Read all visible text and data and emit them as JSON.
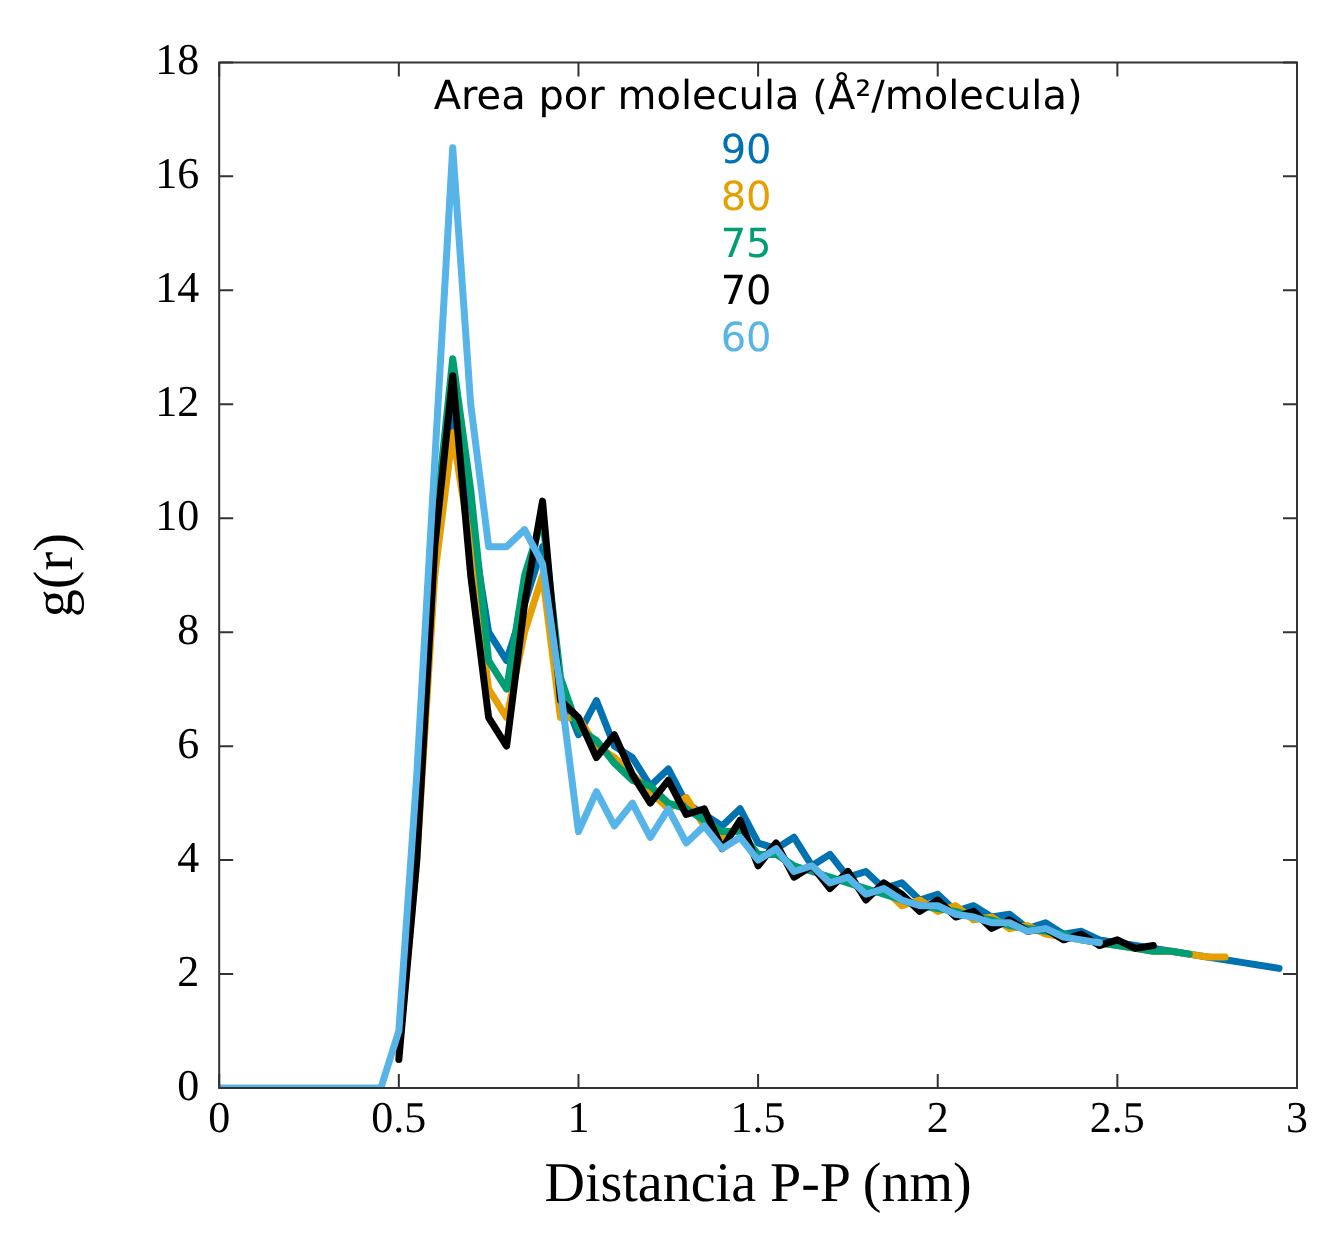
{
  "chart_data": {
    "type": "line",
    "xlabel": "Distancia P-P (nm)",
    "ylabel": "g(r)",
    "legend_title": "Area por molecula (Å²/molecula)",
    "legend": "top",
    "marker": "none",
    "line_style": "solid",
    "grid": false,
    "xlim": [
      0,
      3
    ],
    "xticks": [
      0,
      0.5,
      1,
      1.5,
      2,
      2.5,
      3
    ],
    "ylim": [
      0,
      18
    ],
    "yticks": [
      0,
      2,
      4,
      6,
      8,
      10,
      12,
      14,
      16,
      18
    ],
    "x": [
      0,
      0.45,
      0.5,
      0.55,
      0.6,
      0.65,
      0.7,
      0.75,
      0.8,
      0.85,
      0.9,
      0.95,
      1,
      1.05,
      1.1,
      1.15,
      1.2,
      1.25,
      1.3,
      1.35,
      1.4,
      1.45,
      1.5,
      1.55,
      1.6,
      1.65,
      1.7,
      1.75,
      1.8,
      1.85,
      1.9,
      1.95,
      2,
      2.05,
      2.1,
      2.15,
      2.2,
      2.25,
      2.3,
      2.35,
      2.4,
      2.45,
      2.5,
      2.55,
      2.6,
      2.65,
      2.7,
      2.75,
      2.8,
      2.85,
      2.9,
      2.95
    ],
    "series": [
      {
        "name": "90",
        "color": "#0072b2",
        "values": [
          null,
          null,
          0.8,
          4.5,
          9.5,
          12,
          10,
          8,
          7.5,
          8.5,
          9.5,
          7,
          6.2,
          6.8,
          6,
          5.8,
          5.3,
          5.6,
          5,
          4.8,
          4.6,
          4.9,
          4.3,
          4.2,
          4.4,
          3.9,
          4.1,
          3.7,
          3.8,
          3.5,
          3.6,
          3.3,
          3.4,
          3.1,
          3.2,
          3.0,
          3.05,
          2.8,
          2.9,
          2.7,
          2.75,
          2.6,
          2.55,
          2.5,
          2.45,
          2.4,
          2.35,
          2.3,
          2.25,
          2.2,
          2.15,
          2.1
        ]
      },
      {
        "name": "80",
        "color": "#e69f00",
        "values": [
          null,
          null,
          0.6,
          4,
          9,
          11.5,
          9.5,
          7,
          6.5,
          8,
          9,
          6.5,
          6.5,
          6,
          5.8,
          5.5,
          5.2,
          4.9,
          5.1,
          4.6,
          4.4,
          4.6,
          4.0,
          4.2,
          3.8,
          3.9,
          3.6,
          3.7,
          3.4,
          3.5,
          3.2,
          3.3,
          3.1,
          3.2,
          2.95,
          3.0,
          2.8,
          2.85,
          2.7,
          2.65,
          2.6,
          2.55,
          2.5,
          2.45,
          2.4,
          2.4,
          2.35,
          2.3,
          2.3,
          null,
          null,
          null
        ]
      },
      {
        "name": "75",
        "color": "#009e73",
        "values": [
          null,
          null,
          0.7,
          4.2,
          9.8,
          12.8,
          10.5,
          7.5,
          7,
          9,
          10,
          7.2,
          6.3,
          6.1,
          5.7,
          5.4,
          5.3,
          5,
          4.9,
          4.7,
          4.5,
          4.5,
          4.1,
          4.1,
          3.9,
          3.8,
          3.7,
          3.6,
          3.5,
          3.4,
          3.3,
          3.2,
          3.15,
          3.1,
          3.0,
          2.95,
          2.85,
          2.8,
          2.75,
          2.7,
          2.6,
          2.55,
          2.5,
          2.45,
          2.4,
          2.4,
          2.35,
          null,
          null,
          null,
          null,
          null
        ]
      },
      {
        "name": "70",
        "color": "#000000",
        "values": [
          null,
          null,
          0.5,
          4,
          9.5,
          12.5,
          9,
          6.5,
          6,
          8.5,
          10.3,
          6.8,
          6.5,
          5.8,
          6.2,
          5.5,
          5.0,
          5.4,
          4.8,
          4.9,
          4.2,
          4.7,
          3.9,
          4.3,
          3.7,
          3.9,
          3.5,
          3.8,
          3.3,
          3.6,
          3.4,
          3.1,
          3.3,
          3.0,
          3.1,
          2.8,
          2.95,
          2.75,
          2.8,
          2.6,
          2.7,
          2.5,
          2.6,
          2.45,
          2.5,
          null,
          null,
          null,
          null,
          null,
          null,
          null
        ]
      },
      {
        "name": "60",
        "color": "#56b4e9",
        "values": [
          0,
          0,
          1,
          5.5,
          11,
          16.5,
          12,
          9.5,
          9.5,
          9.8,
          9.2,
          7,
          4.5,
          5.2,
          4.6,
          5.0,
          4.4,
          4.9,
          4.3,
          4.6,
          4.2,
          4.4,
          4.0,
          4.2,
          3.8,
          3.9,
          3.6,
          3.7,
          3.4,
          3.5,
          3.3,
          3.2,
          3.2,
          3.05,
          3.0,
          2.9,
          2.9,
          2.75,
          2.8,
          2.65,
          2.6,
          2.55,
          null,
          null,
          null,
          null,
          null,
          null,
          null,
          null,
          null,
          null
        ]
      }
    ]
  }
}
